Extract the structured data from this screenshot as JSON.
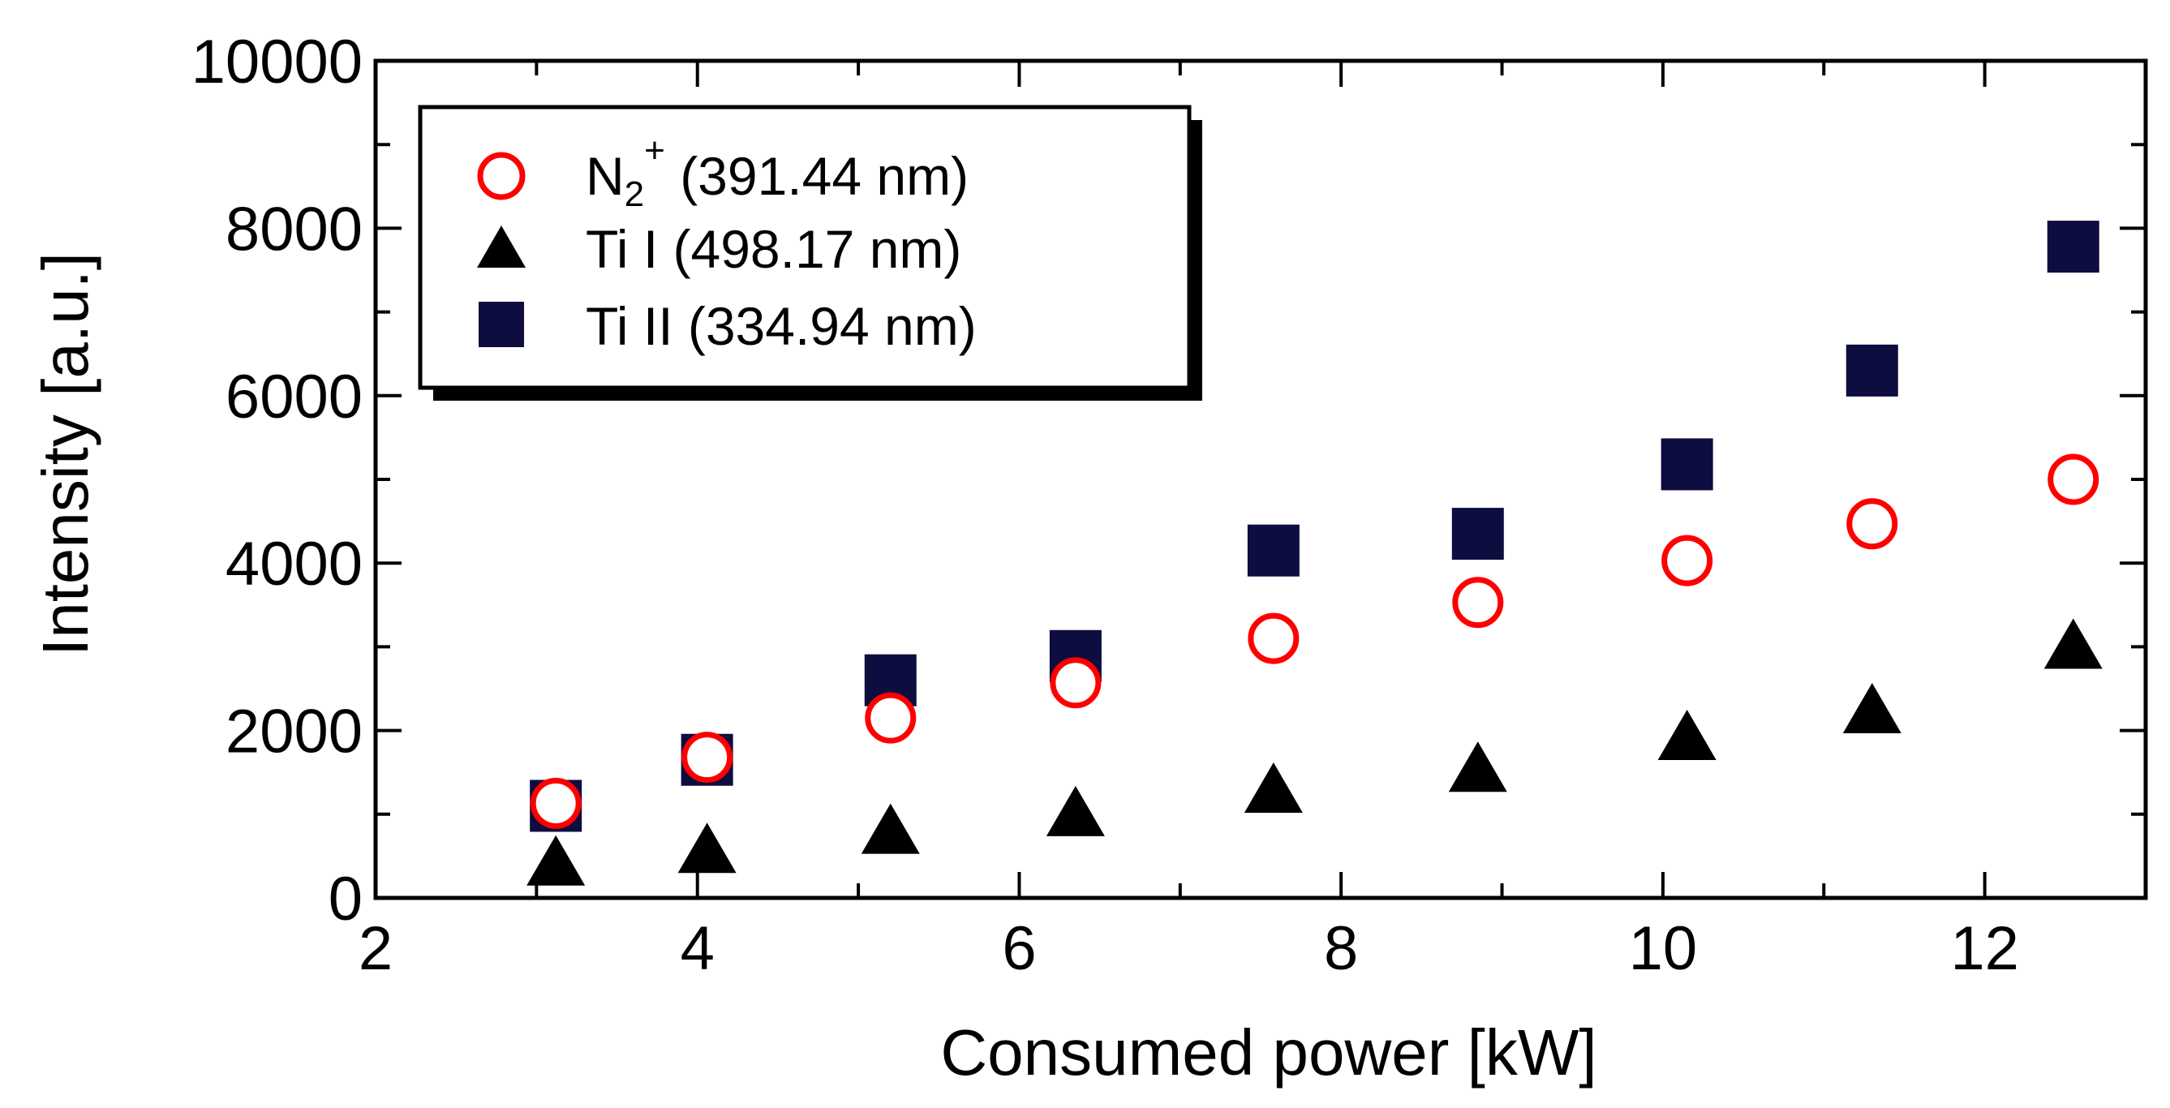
{
  "chart_data": {
    "type": "scatter",
    "title": "",
    "xlabel": "Consumed power [kW]",
    "ylabel": "Intensity [a.u.]",
    "xlim": [
      2,
      13
    ],
    "ylim": [
      0,
      10000
    ],
    "x_ticks": [
      2,
      4,
      6,
      8,
      10,
      12
    ],
    "y_ticks": [
      0,
      2000,
      4000,
      6000,
      8000,
      10000
    ],
    "x_minor_step": 1,
    "y_minor_step": 1000,
    "grid": false,
    "legend_position": "top-left",
    "series": [
      {
        "name": "N2+ (391.44 nm)",
        "legend_base": "N",
        "legend_sub": "2",
        "legend_sup": "+",
        "legend_rest": " (391.44 nm)",
        "marker": "circle-open",
        "color": "#ff0000",
        "x": [
          3.12,
          4.06,
          5.2,
          6.35,
          7.58,
          8.85,
          10.15,
          11.3,
          12.55
        ],
        "y": [
          1130,
          1680,
          2150,
          2570,
          3100,
          3530,
          4030,
          4470,
          5000
        ]
      },
      {
        "name": "Ti I (498.17 nm)",
        "legend_base": "Ti I (498.17 nm)",
        "marker": "triangle-filled",
        "color": "#000000",
        "x": [
          3.12,
          4.06,
          5.2,
          6.35,
          7.58,
          8.85,
          10.15,
          11.3,
          12.55
        ],
        "y": [
          380,
          530,
          760,
          970,
          1250,
          1500,
          1880,
          2200,
          2970
        ]
      },
      {
        "name": "Ti II (334.94 nm)",
        "legend_base": "Ti II (334.94 nm)",
        "marker": "square-filled",
        "color": "#0d0d40",
        "x": [
          3.12,
          4.06,
          5.2,
          6.35,
          7.58,
          8.85,
          10.15,
          11.3,
          12.55
        ],
        "y": [
          1100,
          1650,
          2600,
          2890,
          4150,
          4350,
          5180,
          6300,
          7780
        ]
      }
    ]
  }
}
